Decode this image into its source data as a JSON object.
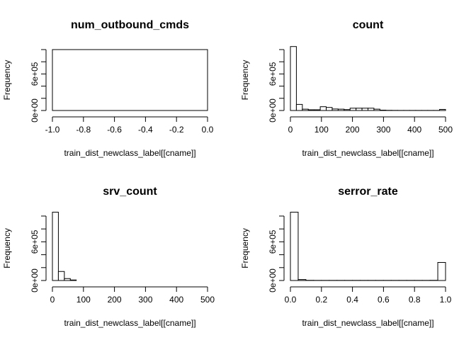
{
  "chart_data": [
    {
      "type": "bar",
      "title": "num_outbound_cmds",
      "xlabel": "train_dist_newclass_label[[cname]]",
      "ylabel": "Frequency",
      "xlim": [
        -1.0,
        0.0
      ],
      "ylim": [
        0,
        1000000
      ],
      "xticks": [
        "-1.0",
        "-0.8",
        "-0.6",
        "-0.4",
        "-0.2",
        "0.0"
      ],
      "yticks": [
        "0e+00",
        "6e+05"
      ],
      "bins": [],
      "values": [],
      "empty_box": true
    },
    {
      "type": "bar",
      "title": "count",
      "xlabel": "train_dist_newclass_label[[cname]]",
      "ylabel": "Frequency",
      "xlim": [
        0,
        520
      ],
      "ylim": [
        0,
        1000000
      ],
      "xticks": [
        "0",
        "100",
        "200",
        "300",
        "400",
        "500"
      ],
      "yticks": [
        "0e+00",
        "6e+05"
      ],
      "bins": [
        [
          0,
          20
        ],
        [
          20,
          40
        ],
        [
          40,
          60
        ],
        [
          60,
          80
        ],
        [
          80,
          100
        ],
        [
          100,
          120
        ],
        [
          120,
          140
        ],
        [
          140,
          160
        ],
        [
          160,
          180
        ],
        [
          180,
          200
        ],
        [
          200,
          220
        ],
        [
          220,
          240
        ],
        [
          240,
          260
        ],
        [
          260,
          280
        ],
        [
          280,
          300
        ],
        [
          300,
          320
        ],
        [
          320,
          340
        ],
        [
          340,
          360
        ],
        [
          360,
          380
        ],
        [
          380,
          400
        ],
        [
          400,
          420
        ],
        [
          420,
          440
        ],
        [
          440,
          460
        ],
        [
          460,
          480
        ],
        [
          480,
          500
        ],
        [
          500,
          520
        ]
      ],
      "values": [
        1050000,
        100000,
        22000,
        12000,
        12000,
        62000,
        50000,
        25000,
        22000,
        15000,
        38000,
        38000,
        38000,
        38000,
        22000,
        6000,
        3000,
        2000,
        1500,
        1500,
        1500,
        1500,
        1500,
        1500,
        1500,
        18000
      ]
    },
    {
      "type": "bar",
      "title": "srv_count",
      "xlabel": "train_dist_newclass_label[[cname]]",
      "ylabel": "Frequency",
      "xlim": [
        0,
        520
      ],
      "ylim": [
        0,
        1000000
      ],
      "xticks": [
        "0",
        "100",
        "200",
        "300",
        "400",
        "500"
      ],
      "yticks": [
        "0e+00",
        "6e+05"
      ],
      "bins": [
        [
          0,
          20
        ],
        [
          20,
          40
        ],
        [
          40,
          60
        ],
        [
          60,
          80
        ]
      ],
      "values": [
        1060000,
        140000,
        30000,
        8000
      ]
    },
    {
      "type": "bar",
      "title": "serror_rate",
      "xlabel": "train_dist_newclass_label[[cname]]",
      "ylabel": "Frequency",
      "xlim": [
        0,
        1.0
      ],
      "ylim": [
        0,
        1000000
      ],
      "xticks": [
        "0.0",
        "0.2",
        "0.4",
        "0.6",
        "0.8",
        "1.0"
      ],
      "yticks": [
        "0e+00",
        "6e+05"
      ],
      "bins": [
        [
          0,
          0.05
        ],
        [
          0.05,
          0.1
        ],
        [
          0.1,
          0.15
        ],
        [
          0.15,
          0.2
        ],
        [
          0.2,
          0.25
        ],
        [
          0.25,
          0.3
        ],
        [
          0.3,
          0.35
        ],
        [
          0.35,
          0.4
        ],
        [
          0.4,
          0.45
        ],
        [
          0.45,
          0.5
        ],
        [
          0.5,
          0.55
        ],
        [
          0.55,
          0.6
        ],
        [
          0.6,
          0.65
        ],
        [
          0.65,
          0.7
        ],
        [
          0.7,
          0.75
        ],
        [
          0.75,
          0.8
        ],
        [
          0.8,
          0.85
        ],
        [
          0.85,
          0.9
        ],
        [
          0.9,
          0.95
        ],
        [
          0.95,
          1.0
        ]
      ],
      "values": [
        1060000,
        15000,
        3000,
        2000,
        2000,
        2000,
        2000,
        2000,
        2000,
        2000,
        2000,
        2000,
        2000,
        2000,
        2000,
        2000,
        2000,
        2000,
        3000,
        280000
      ]
    }
  ]
}
